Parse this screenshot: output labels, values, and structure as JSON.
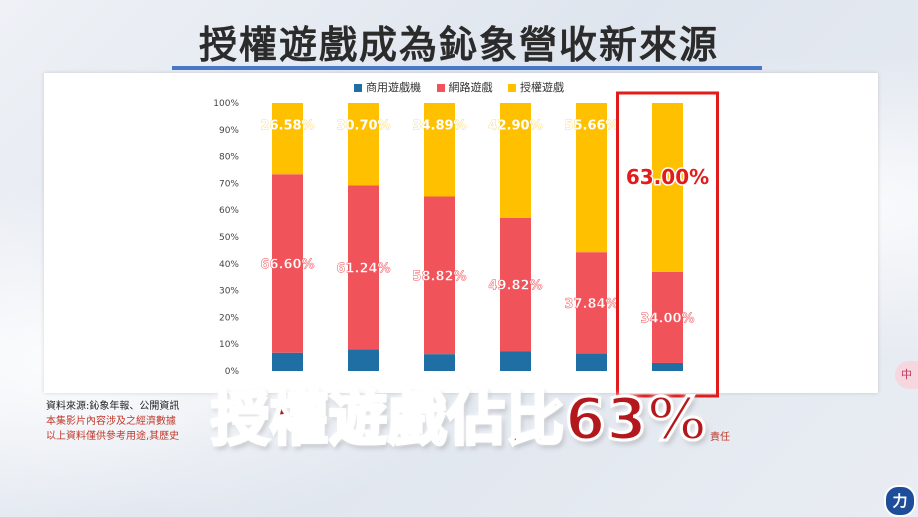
{
  "headline": "授權遊戲成為鈊象營收新來源",
  "overlay_caption": "授權遊戲佔比63%",
  "source": {
    "line1": "資料來源:鈊象年報、公開資訊",
    "line2": "本集影片內容涉及之經濟數據",
    "line3": "以上資料僅供參考用途,其歷史",
    "line3_tail": "責任"
  },
  "side_badge": "中",
  "logo_text": "力",
  "colors": {
    "arcade": "#1f6fa4",
    "online": "#f0545a",
    "licensed": "#ffc000",
    "highlight_box": "#e21b1b",
    "label_white": "#ffffff"
  },
  "chart_data": {
    "type": "bar",
    "stacked": true,
    "percent_stacked": true,
    "categories": [
      "",
      "",
      "",
      "",
      "",
      ""
    ],
    "series": [
      {
        "name": "商用遊戲機",
        "values": [
          6.82,
          8.06,
          6.29,
          7.28,
          6.5,
          3.0
        ]
      },
      {
        "name": "網路遊戲",
        "values": [
          66.6,
          61.24,
          58.82,
          49.82,
          37.84,
          34.0
        ]
      },
      {
        "name": "授權遊戲",
        "values": [
          26.58,
          30.7,
          34.89,
          42.9,
          55.66,
          63.0
        ]
      }
    ],
    "data_labels": {
      "online": [
        "66.60%",
        "61.24%",
        "58.82%",
        "49.82%",
        "37.84%",
        "34.00%"
      ],
      "licensed": [
        "26.58%",
        "30.70%",
        "34.89%",
        "42.90%",
        "55.66%",
        "63.00%"
      ]
    },
    "yticks": [
      "0%",
      "10%",
      "20%",
      "30%",
      "40%",
      "50%",
      "60%",
      "70%",
      "80%",
      "90%",
      "100%"
    ],
    "ylim": [
      0,
      100
    ],
    "legend_position": "top",
    "highlighted_index": 5,
    "grid": false
  }
}
